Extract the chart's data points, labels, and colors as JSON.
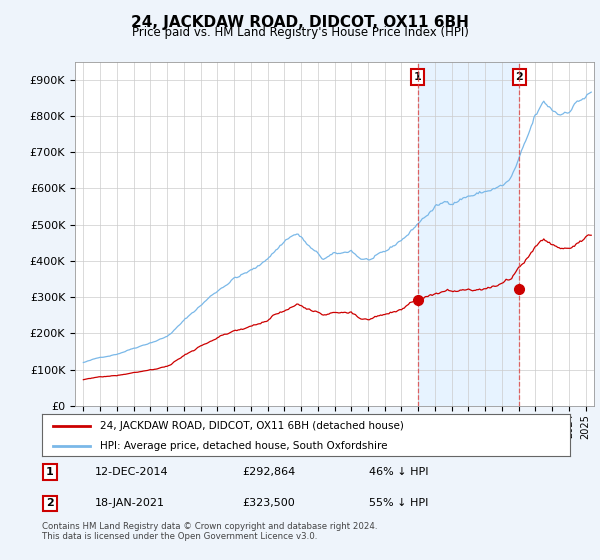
{
  "title": "24, JACKDAW ROAD, DIDCOT, OX11 6BH",
  "subtitle": "Price paid vs. HM Land Registry's House Price Index (HPI)",
  "ylabel_ticks": [
    "£0",
    "£100K",
    "£200K",
    "£300K",
    "£400K",
    "£500K",
    "£600K",
    "£700K",
    "£800K",
    "£900K"
  ],
  "ylim": [
    0,
    950000
  ],
  "xlim_start": 1994.5,
  "xlim_end": 2025.5,
  "hpi_color": "#7ab8e8",
  "hpi_shade_color": "#ddeeff",
  "price_color": "#cc0000",
  "background_color": "#eef4fb",
  "plot_bg_color": "#ffffff",
  "legend_label_red": "24, JACKDAW ROAD, DIDCOT, OX11 6BH (detached house)",
  "legend_label_blue": "HPI: Average price, detached house, South Oxfordshire",
  "transaction1_label": "1",
  "transaction1_date": "12-DEC-2014",
  "transaction1_price": "£292,864",
  "transaction1_hpi": "46% ↓ HPI",
  "transaction2_label": "2",
  "transaction2_date": "18-JAN-2021",
  "transaction2_price": "£323,500",
  "transaction2_hpi": "55% ↓ HPI",
  "footer": "Contains HM Land Registry data © Crown copyright and database right 2024.\nThis data is licensed under the Open Government Licence v3.0.",
  "marker1_x": 2014.96,
  "marker1_y": 292864,
  "marker2_x": 2021.05,
  "marker2_y": 323500
}
